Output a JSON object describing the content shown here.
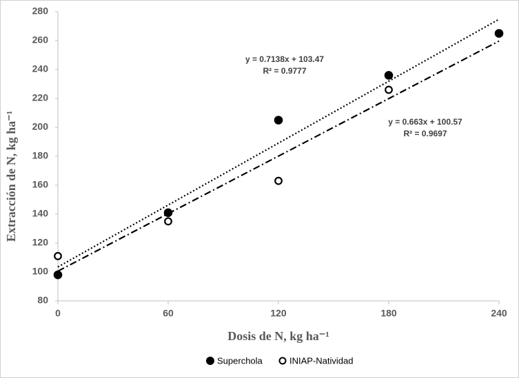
{
  "chart_data": {
    "type": "scatter",
    "x_label": "Dosis de N, kg ha⁻¹",
    "y_label": "Extracción de N, kg ha⁻¹",
    "xlim": [
      0,
      240
    ],
    "xticks": [
      0,
      60,
      120,
      180,
      240
    ],
    "ylim": [
      80,
      280
    ],
    "yticks": [
      80,
      100,
      120,
      140,
      160,
      180,
      200,
      220,
      240,
      260,
      280
    ],
    "grid": false,
    "legend": "bottom",
    "series": [
      {
        "name": "Superchola",
        "color": "#000000",
        "marker": "filled",
        "x": [
          0,
          60,
          120,
          180,
          240
        ],
        "values": [
          98,
          141,
          205,
          236,
          265
        ],
        "trendline": {
          "slope": 0.7138,
          "intercept": 103.47,
          "style": "dotted",
          "equation": "y = 0.7138x + 103.47",
          "r2": "R² = 0.9777"
        }
      },
      {
        "name": "INIAP-Natividad",
        "color": "#000000",
        "marker": "hollow",
        "x": [
          0,
          60,
          120,
          180
        ],
        "values": [
          111,
          135,
          163,
          226
        ],
        "trendline": {
          "slope": 0.663,
          "intercept": 100.57,
          "style": "dashdot",
          "equation": "y = 0.663x + 100.57",
          "r2": "R² = 0.9697"
        }
      }
    ]
  }
}
